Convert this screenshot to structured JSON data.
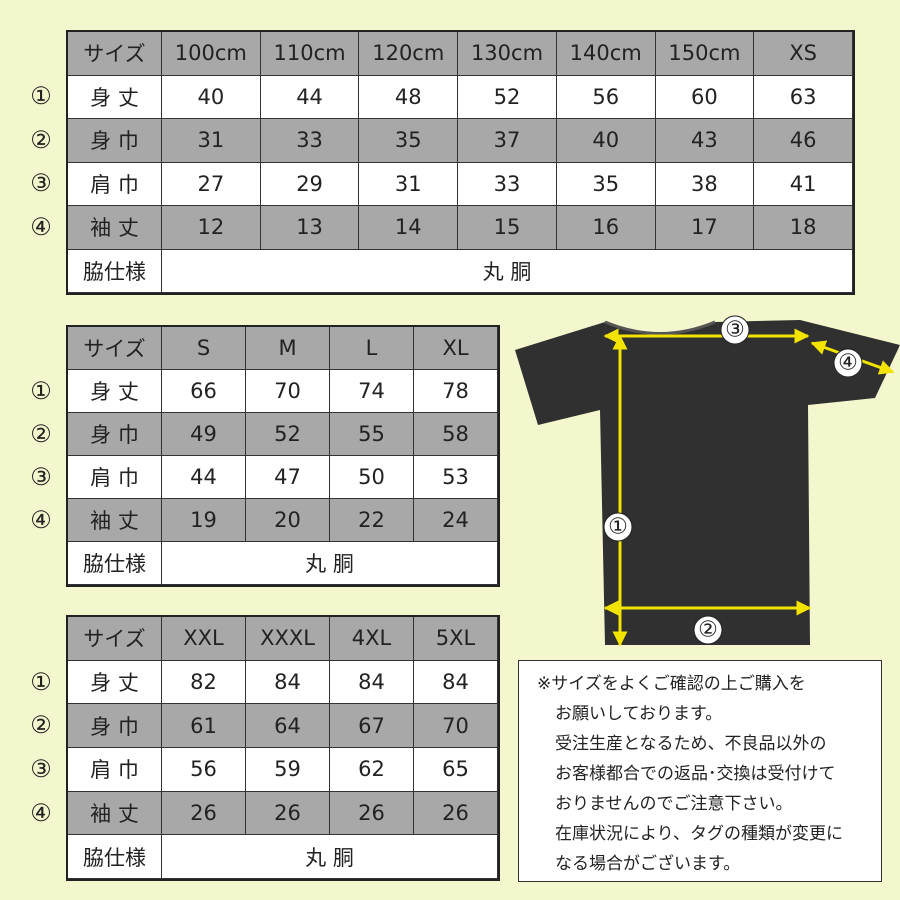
{
  "tables": [
    {
      "header": [
        "サイズ",
        "100cm",
        "110cm",
        "120cm",
        "130cm",
        "140cm",
        "150cm",
        "XS"
      ],
      "rows": [
        {
          "marker": "①",
          "label": "身 丈",
          "values": [
            40,
            44,
            48,
            52,
            56,
            60,
            63
          ]
        },
        {
          "marker": "②",
          "label": "身 巾",
          "values": [
            31,
            33,
            35,
            37,
            40,
            43,
            46
          ]
        },
        {
          "marker": "③",
          "label": "肩 巾",
          "values": [
            27,
            29,
            31,
            33,
            35,
            38,
            41
          ]
        },
        {
          "marker": "④",
          "label": "袖 丈",
          "values": [
            12,
            13,
            14,
            15,
            16,
            17,
            18
          ]
        }
      ],
      "side": [
        "脇仕様",
        "丸 胴"
      ]
    },
    {
      "header": [
        "サイズ",
        "S",
        "M",
        "L",
        "XL"
      ],
      "rows": [
        {
          "marker": "①",
          "label": "身 丈",
          "values": [
            66,
            70,
            74,
            78
          ]
        },
        {
          "marker": "②",
          "label": "身 巾",
          "values": [
            49,
            52,
            55,
            58
          ]
        },
        {
          "marker": "③",
          "label": "肩 巾",
          "values": [
            44,
            47,
            50,
            53
          ]
        },
        {
          "marker": "④",
          "label": "袖 丈",
          "values": [
            19,
            20,
            22,
            24
          ]
        }
      ],
      "side": [
        "脇仕様",
        "丸 胴"
      ]
    },
    {
      "header": [
        "サイズ",
        "XXL",
        "XXXL",
        "4XL",
        "5XL"
      ],
      "rows": [
        {
          "marker": "①",
          "label": "身 丈",
          "values": [
            82,
            84,
            84,
            84
          ]
        },
        {
          "marker": "②",
          "label": "身 巾",
          "values": [
            61,
            64,
            67,
            70
          ]
        },
        {
          "marker": "③",
          "label": "肩 巾",
          "values": [
            56,
            59,
            62,
            65
          ]
        },
        {
          "marker": "④",
          "label": "袖 丈",
          "values": [
            26,
            26,
            26,
            26
          ]
        }
      ],
      "side": [
        "脇仕様",
        "丸 胴"
      ]
    }
  ],
  "diagram": {
    "labels": [
      "①",
      "②",
      "③",
      "④"
    ]
  },
  "notes": [
    "※サイズをよくご確認の上ご購入を",
    "お願いしております。",
    "受注生産となるため、不良品以外の",
    "お客様都合での返品･交換は受付けて",
    "おりませんのでご注意下さい。",
    "在庫状況により、タグの種類が変更に",
    "なる場合がございます。"
  ]
}
